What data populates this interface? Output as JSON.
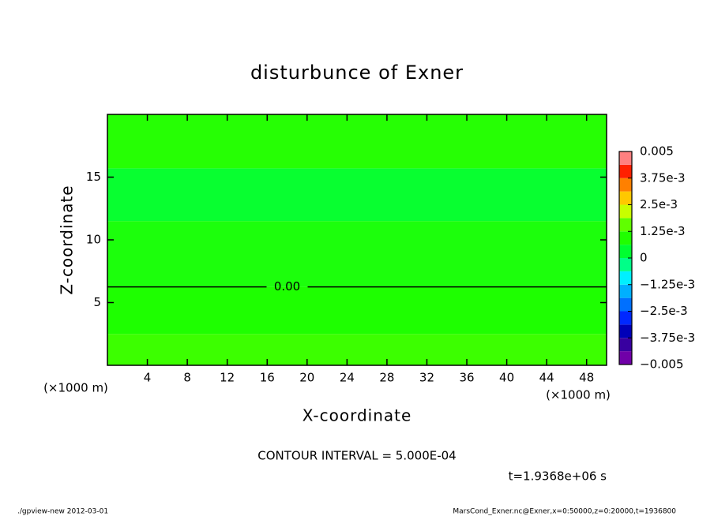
{
  "chart_data": {
    "type": "contour",
    "title": "disturbunce of Exner",
    "xlabel": "X-coordinate",
    "ylabel": "Z-coordinate",
    "x_unit": "(×1000 m)",
    "xlim": [
      0,
      50
    ],
    "ylim": [
      0,
      20
    ],
    "xticks": [
      4,
      8,
      12,
      16,
      20,
      24,
      28,
      32,
      36,
      40,
      44,
      48
    ],
    "yticks": [
      5,
      10,
      15
    ],
    "fill_bands": [
      {
        "y0": 0,
        "y1": 2.5,
        "color": "#3cff00"
      },
      {
        "y0": 2.5,
        "y1": 6.25,
        "color": "#1eff00"
      },
      {
        "y0": 6.25,
        "y1": 11.5,
        "color": "#1cff0c"
      },
      {
        "y0": 11.5,
        "y1": 15.7,
        "color": "#08ff30"
      },
      {
        "y0": 15.7,
        "y1": 20,
        "color": "#26ff04"
      }
    ],
    "contours": [
      {
        "y": 6.25,
        "label": "0.00"
      }
    ],
    "clim": [
      -0.005,
      0.005
    ],
    "colorbar_colors": [
      "#7000a8",
      "#3800a0",
      "#0000b8",
      "#0028ff",
      "#0070ff",
      "#00b0ff",
      "#00f0ff",
      "#00ff88",
      "#00ff30",
      "#20ff00",
      "#60ff00",
      "#c8ff00",
      "#ffc800",
      "#ff8000",
      "#ff2000",
      "#ff8080"
    ],
    "colorbar_ticks": [
      {
        "value": 0.005,
        "label": "0.005"
      },
      {
        "value": 0.00375,
        "label": "3.75e-3"
      },
      {
        "value": 0.0025,
        "label": "2.5e-3"
      },
      {
        "value": 0.00125,
        "label": "1.25e-3"
      },
      0,
      {
        "value": -0.00125,
        "label": "−1.25e-3"
      },
      {
        "value": -0.0025,
        "label": "−2.5e-3"
      },
      {
        "value": -0.00375,
        "label": "−3.75e-3"
      },
      {
        "value": -0.005,
        "label": "−0.005"
      }
    ],
    "interval_note": "CONTOUR INTERVAL = 5.000E-04",
    "time_note": "t=1.9368e+06 s",
    "footer_left": "./gpview-new  2012-03-01",
    "footer_right": "MarsCond_Exner.nc@Exner,x=0:50000,z=0:20000,t=1936800"
  }
}
